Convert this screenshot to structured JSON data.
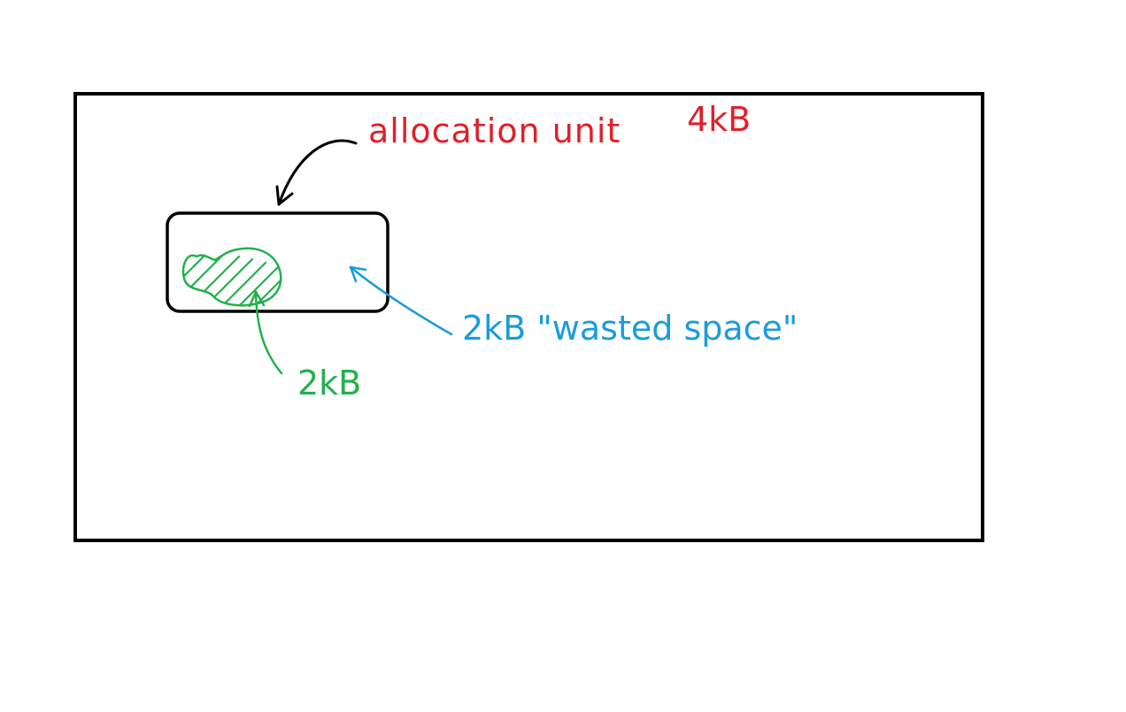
{
  "colors": {
    "ink": "#000000",
    "red": "#e0202a",
    "green": "#22b14c",
    "blue": "#1a9cdb",
    "background": "#ffffff"
  },
  "labels": {
    "allocation_unit": "allocation unit",
    "allocation_size": "4kB",
    "used_size": "2kB",
    "wasted_label": "2kB \"wasted space\""
  }
}
